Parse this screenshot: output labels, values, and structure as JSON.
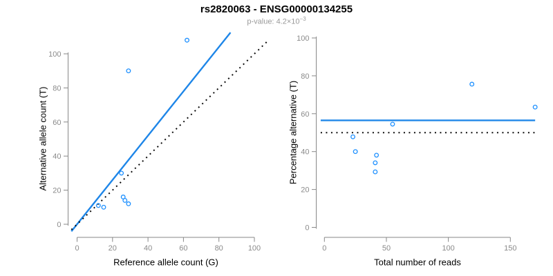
{
  "header": {
    "title": "rs2820063 - ENSG00000134255",
    "subtitle_prefix": "p-value: ",
    "subtitle_value": "4.2×10",
    "subtitle_exponent": "−3"
  },
  "colors": {
    "point_blue": "#1E90FF",
    "line_blue": "#1E86E8",
    "dotted_black": "#0a0a0a",
    "axis_gray": "#878787",
    "tick_label_gray": "#8a8a8a",
    "subtitle_gray": "#9a9a9a",
    "title_black": "#000000"
  },
  "chart_data": [
    {
      "type": "scatter",
      "panel": "left",
      "xlabel": "Reference allele count (G)",
      "ylabel": "Alternative allele count (T)",
      "xlim": [
        0,
        100
      ],
      "ylim": [
        0,
        100
      ],
      "xticks": [
        0,
        20,
        40,
        60,
        80,
        100
      ],
      "yticks": [
        0,
        20,
        40,
        60,
        80,
        100
      ],
      "grid": false,
      "legend": null,
      "points": [
        [
          12,
          11
        ],
        [
          15,
          10
        ],
        [
          26,
          16
        ],
        [
          27,
          14
        ],
        [
          29,
          12
        ],
        [
          25,
          30
        ],
        [
          29,
          90
        ],
        [
          62,
          108
        ]
      ],
      "lines": [
        {
          "name": "fit-line",
          "style": "solid",
          "color_key": "line_blue",
          "slope": 1.3,
          "intercept": 0
        },
        {
          "name": "identity-line",
          "style": "dotted",
          "color_key": "dotted_black",
          "slope": 1,
          "intercept": 0
        }
      ]
    },
    {
      "type": "scatter",
      "panel": "right",
      "xlabel": "Total number of reads",
      "ylabel": "Percentage alternative (T)",
      "xlim": [
        0,
        150
      ],
      "ylim": [
        0,
        100
      ],
      "xticks": [
        0,
        50,
        100,
        150
      ],
      "yticks": [
        0,
        20,
        40,
        60,
        80,
        100
      ],
      "grid": false,
      "legend": null,
      "points": [
        [
          23,
          47.8
        ],
        [
          25,
          40
        ],
        [
          42,
          38.1
        ],
        [
          41,
          34.1
        ],
        [
          41,
          29.3
        ],
        [
          55,
          54.5
        ],
        [
          119,
          75.6
        ],
        [
          170,
          63.5
        ]
      ],
      "lines": [
        {
          "name": "fit-line",
          "style": "solid",
          "color_key": "line_blue",
          "y": 56.5
        },
        {
          "name": "expected-line",
          "style": "dotted",
          "color_key": "dotted_black",
          "y": 50
        }
      ]
    }
  ]
}
